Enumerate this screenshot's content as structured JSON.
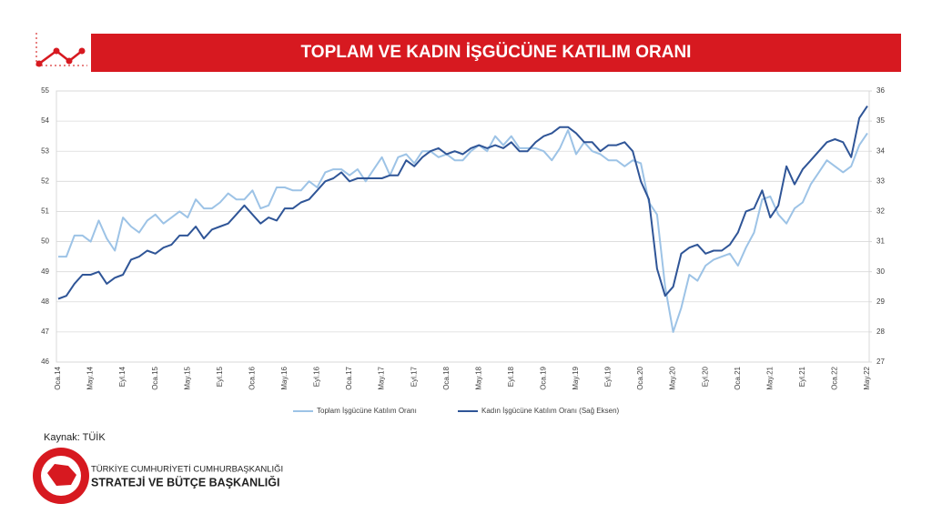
{
  "chart_data": {
    "type": "line",
    "title": "TOPLAM VE KADIN İŞGÜCÜNE KATILIM ORANI",
    "source": "Kaynak: TÜİK",
    "org_line1": "TÜRKİYE CUMHURİYETİ CUMHURBAŞKANLIĞI",
    "org_line2": "STRATEJİ VE BÜTÇE BAŞKANLIĞI",
    "categories": [
      "Oca.14",
      null,
      null,
      null,
      "May.14",
      null,
      null,
      null,
      "Eyl.14",
      null,
      null,
      null,
      "Oca.15",
      null,
      null,
      null,
      "May.15",
      null,
      null,
      null,
      "Eyl.15",
      null,
      null,
      null,
      "Oca.16",
      null,
      null,
      null,
      "May.16",
      null,
      null,
      null,
      "Eyl.16",
      null,
      null,
      null,
      "Oca.17",
      null,
      null,
      null,
      "May.17",
      null,
      null,
      null,
      "Eyl.17",
      null,
      null,
      null,
      "Oca.18",
      null,
      null,
      null,
      "May.18",
      null,
      null,
      null,
      "Eyl.18",
      null,
      null,
      null,
      "Oca.19",
      null,
      null,
      null,
      "May.19",
      null,
      null,
      null,
      "Eyl.19",
      null,
      null,
      null,
      "Oca.20",
      null,
      null,
      null,
      "May.20",
      null,
      null,
      null,
      "Eyl.20",
      null,
      null,
      null,
      "Oca.21",
      null,
      null,
      null,
      "May.21",
      null,
      null,
      null,
      "Eyl.21",
      null,
      null,
      null,
      "Oca.22",
      null,
      null,
      null,
      "May.22"
    ],
    "series": [
      {
        "name": "Toplam İşgücüne Katılım Oranı",
        "color": "#9dc3e6",
        "axis": "y",
        "values": [
          49.5,
          49.5,
          50.2,
          50.2,
          50.0,
          50.7,
          50.1,
          49.7,
          50.8,
          50.5,
          50.3,
          50.7,
          50.9,
          50.6,
          50.8,
          51.0,
          50.8,
          51.4,
          51.1,
          51.1,
          51.3,
          51.6,
          51.4,
          51.4,
          51.7,
          51.1,
          51.2,
          51.8,
          51.8,
          51.7,
          51.7,
          52.0,
          51.8,
          52.3,
          52.4,
          52.4,
          52.2,
          52.4,
          52.0,
          52.4,
          52.8,
          52.2,
          52.8,
          52.9,
          52.6,
          53.0,
          53.0,
          52.8,
          52.9,
          52.7,
          52.7,
          53.0,
          53.2,
          53.0,
          53.5,
          53.2,
          53.5,
          53.1,
          53.1,
          53.1,
          53.0,
          52.7,
          53.1,
          53.7,
          52.9,
          53.3,
          53.0,
          52.9,
          52.7,
          52.7,
          52.5,
          52.7,
          52.6,
          51.3,
          50.9,
          48.5,
          47.0,
          47.8,
          48.9,
          48.7,
          49.2,
          49.4,
          49.5,
          49.6,
          49.2,
          49.8,
          50.3,
          51.4,
          51.5,
          50.9,
          50.6,
          51.1,
          51.3,
          51.9,
          52.3,
          52.7,
          52.5,
          52.3,
          52.5,
          53.2,
          53.6
        ]
      },
      {
        "name": "Kadın İşgücüne Katılım Oranı (Sağ Eksen)",
        "color": "#2f5597",
        "axis": "y2",
        "values": [
          29.1,
          29.2,
          29.6,
          29.9,
          29.9,
          30.0,
          29.6,
          29.8,
          29.9,
          30.4,
          30.5,
          30.7,
          30.6,
          30.8,
          30.9,
          31.2,
          31.2,
          31.5,
          31.1,
          31.4,
          31.5,
          31.6,
          31.9,
          32.2,
          31.9,
          31.6,
          31.8,
          31.7,
          32.1,
          32.1,
          32.3,
          32.4,
          32.7,
          33.0,
          33.1,
          33.3,
          33.0,
          33.1,
          33.1,
          33.1,
          33.1,
          33.2,
          33.2,
          33.7,
          33.5,
          33.8,
          34.0,
          34.1,
          33.9,
          34.0,
          33.9,
          34.1,
          34.2,
          34.1,
          34.2,
          34.1,
          34.3,
          34.0,
          34.0,
          34.3,
          34.5,
          34.6,
          34.8,
          34.8,
          34.6,
          34.3,
          34.3,
          34.0,
          34.2,
          34.2,
          34.3,
          34.0,
          33.0,
          32.4,
          30.1,
          29.2,
          29.5,
          30.6,
          30.8,
          30.9,
          30.6,
          30.7,
          30.7,
          30.9,
          31.3,
          32.0,
          32.1,
          32.7,
          31.8,
          32.2,
          33.5,
          32.9,
          33.4,
          33.7,
          34.0,
          34.3,
          34.4,
          34.3,
          33.8,
          35.1,
          35.5
        ]
      }
    ],
    "ylim": [
      46,
      55
    ],
    "yticks": [
      46,
      47,
      48,
      49,
      50,
      51,
      52,
      53,
      54,
      55
    ],
    "y2lim": [
      27,
      36
    ],
    "y2ticks": [
      27,
      28,
      29,
      30,
      31,
      32,
      33,
      34,
      35,
      36
    ],
    "grid": true,
    "legend": "bottom"
  }
}
